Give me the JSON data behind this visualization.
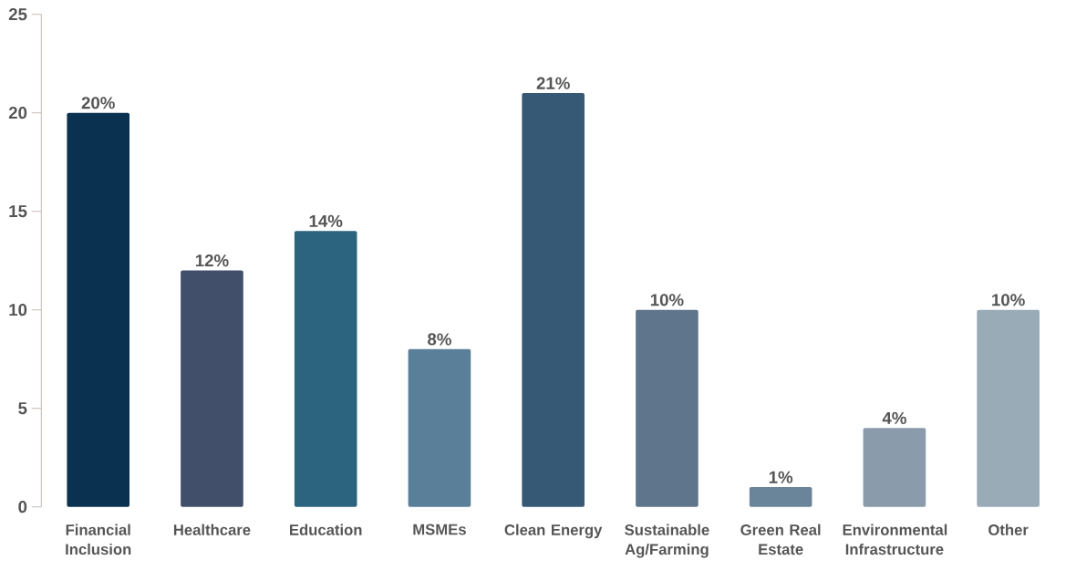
{
  "chart_data": {
    "type": "bar",
    "categories": [
      "Financial Inclusion",
      "Healthcare",
      "Education",
      "MSMEs",
      "Clean Energy",
      "Sustainable Ag/Farming",
      "Green Real Estate",
      "Environmental Infrastructure",
      "Other"
    ],
    "values": [
      20,
      12,
      14,
      8,
      21,
      10,
      1,
      4,
      10
    ],
    "colors": [
      "#0a3250",
      "#414f6b",
      "#2c6480",
      "#5a7f99",
      "#365a75",
      "#5f758b",
      "#6a8499",
      "#8a9bab",
      "#9aabb8"
    ],
    "value_labels": [
      "20%",
      "12%",
      "14%",
      "8%",
      "21%",
      "10%",
      "1%",
      "4%",
      "10%"
    ],
    "ylim": [
      0,
      25
    ],
    "yticks": [
      0,
      5,
      10,
      15,
      20,
      25
    ]
  }
}
